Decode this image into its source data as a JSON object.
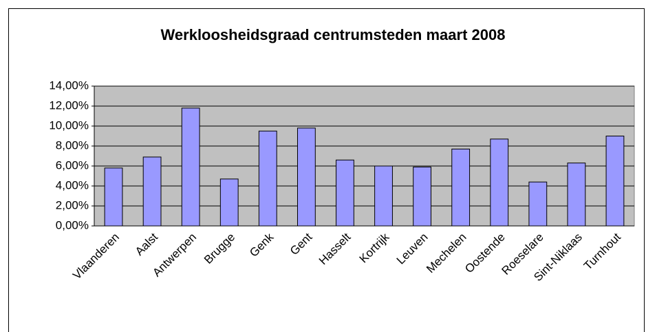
{
  "chart_data": {
    "type": "bar",
    "title": "Werkloosheidsgraad centrumsteden maart 2008",
    "categories": [
      "Vlaanderen",
      "Aalst",
      "Antwerpen",
      "Brugge",
      "Genk",
      "Gent",
      "Hasselt",
      "Kortrijk",
      "Leuven",
      "Mechelen",
      "Oostende",
      "Roeselare",
      "Sint-Niklaas",
      "Turnhout"
    ],
    "values": [
      5.8,
      6.9,
      11.8,
      4.7,
      9.5,
      9.8,
      6.6,
      6.0,
      5.9,
      7.7,
      8.7,
      4.4,
      6.3,
      9.0
    ],
    "color": "#9999ff",
    "ylim": [
      0,
      14
    ],
    "yticks": [
      {
        "value": 0,
        "label": "0,00%"
      },
      {
        "value": 2,
        "label": "2,00%"
      },
      {
        "value": 4,
        "label": "4,00%"
      },
      {
        "value": 6,
        "label": "6,00%"
      },
      {
        "value": 8,
        "label": "8,00%"
      },
      {
        "value": 10,
        "label": "10,00%"
      },
      {
        "value": 12,
        "label": "12,00%"
      },
      {
        "value": 14,
        "label": "14,00%"
      }
    ],
    "grid": true
  }
}
